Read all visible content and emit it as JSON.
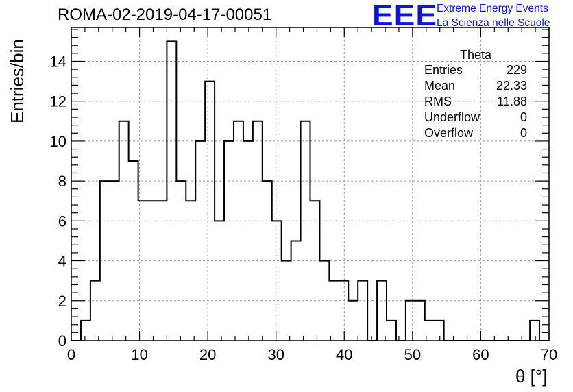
{
  "title": "ROMA-02-2019-04-17-00051",
  "logo": {
    "mark": "EEE",
    "line1": "Extreme Energy Events",
    "line2": "La Scienza nelle Scuole",
    "color": "#0a14e6"
  },
  "stats": {
    "title": "Theta",
    "rows": [
      {
        "label": "Entries",
        "value": "229"
      },
      {
        "label": "Mean",
        "value": "22.33"
      },
      {
        "label": "RMS",
        "value": "11.88"
      },
      {
        "label": "Underflow",
        "value": "0"
      },
      {
        "label": "Overflow",
        "value": "0"
      }
    ]
  },
  "chart_data": {
    "type": "bar",
    "title": "ROMA-02-2019-04-17-00051",
    "xlabel": "θ [°]",
    "ylabel": "Entries/bin",
    "xlim": [
      0,
      70
    ],
    "ylim": [
      0,
      15.7
    ],
    "grid": true,
    "x_ticks": [
      0,
      10,
      20,
      30,
      40,
      50,
      60,
      70
    ],
    "y_ticks": [
      0,
      2,
      4,
      6,
      8,
      10,
      12,
      14
    ],
    "bin_width": 1.4,
    "bin_start": 0,
    "values": [
      0,
      1,
      3,
      8,
      8,
      11,
      9,
      7,
      7,
      7,
      15,
      8,
      7,
      10,
      13,
      6,
      10,
      11,
      10,
      11,
      8,
      6,
      4,
      5,
      11,
      7,
      4,
      3,
      3,
      2,
      3,
      0,
      3,
      1,
      0,
      2,
      2,
      1,
      1,
      0,
      0,
      0,
      0,
      0,
      0,
      0,
      0,
      0,
      1,
      0
    ],
    "line_color": "#000000"
  }
}
